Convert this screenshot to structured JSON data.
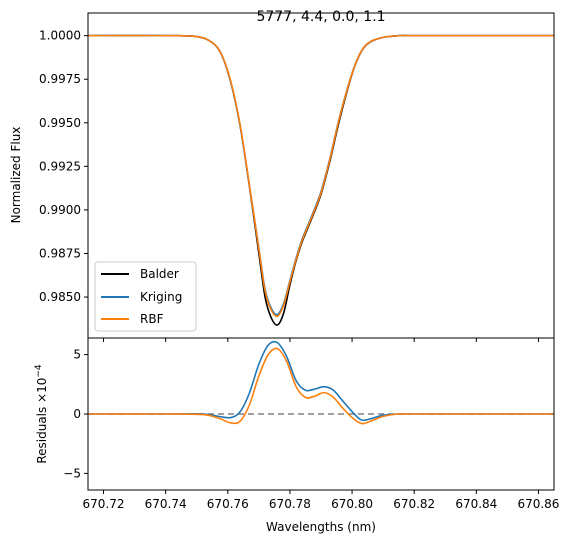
{
  "chart_data": [
    {
      "type": "line",
      "title": "5777, 4.4, 0.0, 1.1",
      "xlabel": "",
      "ylabel": "Normalized Flux",
      "xlim": [
        670.715,
        670.865
      ],
      "ylim": [
        0.98265,
        1.0013
      ],
      "yticks": [
        "0.9850",
        "0.9875",
        "0.9900",
        "0.9925",
        "0.9950",
        "0.9975",
        "1.0000"
      ],
      "legend_position": "lower-left",
      "series": [
        {
          "name": "Balder",
          "color": "#000000",
          "x": [
            670.715,
            670.74,
            670.75,
            670.755,
            670.758,
            670.761,
            670.764,
            670.767,
            670.77,
            670.772,
            670.774,
            670.776,
            670.778,
            670.78,
            670.782,
            670.784,
            670.787,
            670.79,
            670.793,
            670.796,
            670.8,
            670.803,
            670.806,
            670.81,
            670.815,
            670.82,
            670.84,
            670.865
          ],
          "y": [
            1.0,
            1.0,
            0.99995,
            0.9996,
            0.9989,
            0.9973,
            0.9948,
            0.9913,
            0.9875,
            0.985,
            0.9838,
            0.9834,
            0.9841,
            0.9857,
            0.9871,
            0.9882,
            0.9895,
            0.9909,
            0.9929,
            0.9952,
            0.9978,
            0.9991,
            0.99965,
            0.9999,
            1.0,
            1.0,
            1.0,
            1.0
          ]
        },
        {
          "name": "Kriging",
          "color": "#1f77b4",
          "x": [
            670.715,
            670.74,
            670.75,
            670.755,
            670.758,
            670.761,
            670.764,
            670.767,
            670.77,
            670.772,
            670.774,
            670.776,
            670.778,
            670.78,
            670.782,
            670.784,
            670.787,
            670.79,
            670.793,
            670.796,
            670.8,
            670.803,
            670.806,
            670.81,
            670.815,
            670.82,
            670.84,
            670.865
          ],
          "y": [
            1.0,
            1.0,
            0.99995,
            0.9996,
            0.9989,
            0.9973,
            0.9948,
            0.99135,
            0.9878,
            0.98545,
            0.98435,
            0.984,
            0.98465,
            0.98595,
            0.98725,
            0.98835,
            0.98965,
            0.99105,
            0.99305,
            0.99535,
            0.99785,
            0.99912,
            0.99967,
            0.9999,
            1.0,
            1.0,
            1.0,
            1.0
          ]
        },
        {
          "name": "RBF",
          "color": "#ff7f0e",
          "x": [
            670.715,
            670.74,
            670.75,
            670.755,
            670.758,
            670.761,
            670.764,
            670.767,
            670.77,
            670.772,
            670.774,
            670.776,
            670.778,
            670.78,
            670.782,
            670.784,
            670.787,
            670.79,
            670.793,
            670.796,
            670.8,
            670.803,
            670.806,
            670.81,
            670.815,
            670.82,
            670.84,
            670.865
          ],
          "y": [
            1.0,
            1.0,
            0.99995,
            0.9996,
            0.99892,
            0.99735,
            0.99485,
            0.99138,
            0.98775,
            0.98535,
            0.98425,
            0.9839,
            0.98455,
            0.98588,
            0.98718,
            0.98828,
            0.98958,
            0.99098,
            0.993,
            0.99532,
            0.99783,
            0.99912,
            0.99967,
            0.9999,
            1.0,
            1.0,
            1.0,
            1.0
          ]
        }
      ]
    },
    {
      "type": "line",
      "title": "",
      "xlabel": "Wavelengths (nm)",
      "ylabel": "Residuals ×10",
      "ylabel_exponent": "−4",
      "xlim": [
        670.715,
        670.865
      ],
      "ylim": [
        -6.4,
        6.4
      ],
      "xticks": [
        "670.72",
        "670.74",
        "670.76",
        "670.78",
        "670.80",
        "670.82",
        "670.84",
        "670.86"
      ],
      "yticks": [
        "−5",
        "0",
        "5"
      ],
      "reference_line": {
        "y": 0,
        "style": "dashed",
        "color": "#808080"
      },
      "series": [
        {
          "name": "Kriging",
          "color": "#1f77b4",
          "x": [
            670.715,
            670.74,
            670.752,
            670.757,
            670.761,
            670.764,
            670.767,
            670.77,
            670.773,
            670.776,
            670.779,
            670.782,
            670.785,
            670.788,
            670.791,
            670.794,
            670.797,
            670.8,
            670.803,
            670.806,
            670.81,
            670.815,
            670.82,
            670.865
          ],
          "y": [
            0,
            0,
            0,
            -0.2,
            -0.3,
            0.2,
            1.8,
            4.2,
            5.8,
            6.0,
            4.8,
            2.8,
            2.0,
            2.1,
            2.3,
            2.0,
            1.1,
            0.2,
            -0.5,
            -0.4,
            -0.1,
            0,
            0,
            0
          ]
        },
        {
          "name": "RBF",
          "color": "#ff7f0e",
          "x": [
            670.715,
            670.74,
            670.752,
            670.757,
            670.761,
            670.764,
            670.767,
            670.77,
            670.773,
            670.776,
            670.779,
            670.782,
            670.785,
            670.788,
            670.791,
            670.794,
            670.797,
            670.8,
            670.803,
            670.806,
            670.81,
            670.815,
            670.82,
            670.865
          ],
          "y": [
            0,
            0,
            -0.05,
            -0.35,
            -0.75,
            -0.6,
            0.8,
            3.2,
            5.0,
            5.5,
            4.4,
            2.3,
            1.4,
            1.5,
            1.8,
            1.4,
            0.5,
            -0.3,
            -0.8,
            -0.6,
            -0.2,
            0,
            0,
            0
          ]
        }
      ]
    }
  ]
}
